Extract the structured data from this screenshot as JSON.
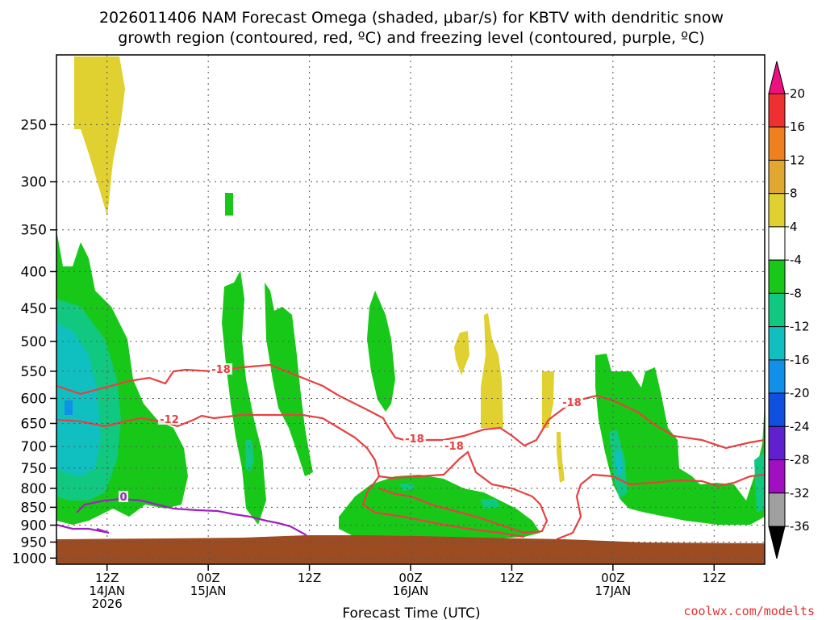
{
  "title_line1": "2026011406 NAM Forecast Omega (shaded, μbar/s) for KBTV with dendritic snow",
  "title_line2": "growth region (contoured, red, ºC) and freezing level (contoured, purple, ºC)",
  "credit": "coolwx.com/modelts",
  "chart_data": {
    "type": "heatmap",
    "variable": "Omega",
    "units": "μbar/s",
    "xlabel": "Forecast Time (UTC)",
    "ylabel": "",
    "x_ticks": [
      {
        "hour": 6,
        "label": "12Z",
        "date": "14JAN",
        "year": "2026"
      },
      {
        "hour": 18,
        "label": "00Z",
        "date": "15JAN",
        "year": ""
      },
      {
        "hour": 30,
        "label": "12Z",
        "date": "",
        "year": ""
      },
      {
        "hour": 42,
        "label": "00Z",
        "date": "16JAN",
        "year": ""
      },
      {
        "hour": 54,
        "label": "12Z",
        "date": "",
        "year": ""
      },
      {
        "hour": 66,
        "label": "00Z",
        "date": "17JAN",
        "year": ""
      },
      {
        "hour": 78,
        "label": "12Z",
        "date": "",
        "year": ""
      }
    ],
    "x_range_hours": [
      0,
      84
    ],
    "y_ticks": [
      250,
      300,
      350,
      400,
      450,
      500,
      550,
      600,
      650,
      700,
      750,
      800,
      850,
      900,
      950,
      1000
    ],
    "y_range_hpa": [
      200,
      1020
    ],
    "y_scale": "log-pressure",
    "grid": true,
    "colorbar": {
      "placement": "right",
      "labels": [
        "20",
        "16",
        "12",
        "8",
        "4",
        "-4",
        "-8",
        "-12",
        "-16",
        "-20",
        "-24",
        "-28",
        "-32",
        "-36"
      ],
      "colors": [
        "#ee1080",
        "#ee3030",
        "#ee8020",
        "#e0a830",
        "#e0d030",
        "#ffffff",
        "#18c818",
        "#10c880",
        "#10c0c0",
        "#1090e8",
        "#1050e0",
        "#6020d0",
        "#a010c0",
        "#a0a0a0",
        "#000000"
      ]
    },
    "contour_labels": [
      {
        "text": "-18",
        "color": "#e84040"
      },
      {
        "text": "-12",
        "color": "#e84040"
      },
      {
        "text": "-18",
        "color": "#e84040"
      },
      {
        "text": "-18",
        "color": "#e84040"
      },
      {
        "text": "-18",
        "color": "#e84040"
      },
      {
        "text": "0",
        "color": "#a020c0"
      }
    ],
    "ground_color": "#9c4c20"
  }
}
